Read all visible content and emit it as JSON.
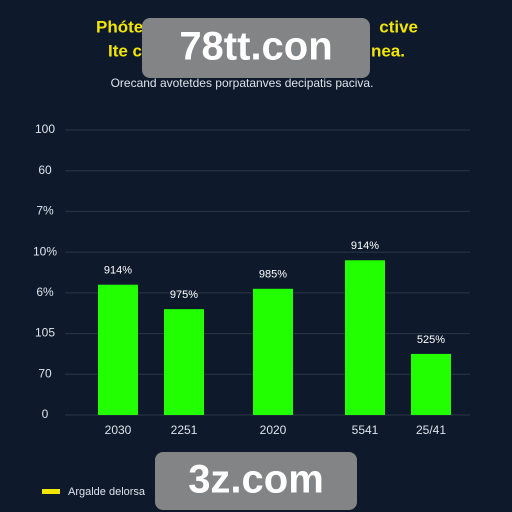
{
  "chart_data": {
    "type": "bar",
    "title": [
      "Phóte",
      "ctive",
      "Ite c",
      "nea."
    ],
    "subtitle": "Orecand avotetdes porpatanves decipatis paciva.",
    "categories": [
      "2030",
      "2251",
      "2020",
      "5541",
      "25/41"
    ],
    "values": [
      3.2,
      2.6,
      3.1,
      3.8,
      1.5
    ],
    "annotations": [
      "914%",
      "975%",
      "985%",
      "914%",
      "525%"
    ],
    "color": "#22ff00",
    "ylim": [
      0,
      7
    ],
    "yticks": [
      {
        "value": 0,
        "label": "0"
      },
      {
        "value": 1,
        "label": "70"
      },
      {
        "value": 2,
        "label": "105"
      },
      {
        "value": 3,
        "label": "6%"
      },
      {
        "value": 4,
        "label": "10%"
      },
      {
        "value": 5,
        "label": "7%"
      },
      {
        "value": 6,
        "label": "60"
      },
      {
        "value": 7,
        "label": "100"
      }
    ],
    "grid": true,
    "legend": {
      "name": "Argalde delorsa",
      "color": "#f2e600"
    },
    "watermarks": [
      "78tt.con",
      "3z.com"
    ]
  }
}
